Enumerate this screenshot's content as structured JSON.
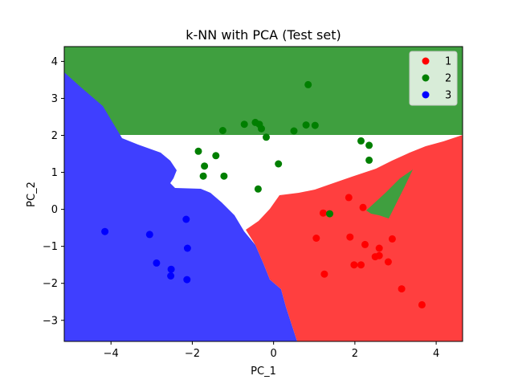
{
  "chart_data": {
    "type": "scatter",
    "title": "k-NN with PCA (Test set)",
    "xlabel": "PC_1",
    "ylabel": "PC_2",
    "xlim": [
      -5.15,
      4.65
    ],
    "ylim": [
      -3.57,
      4.4
    ],
    "xticks": [
      -4,
      -2,
      0,
      2,
      4
    ],
    "yticks": [
      -3,
      -2,
      -1,
      0,
      1,
      2,
      3,
      4
    ],
    "grid": false,
    "legend": {
      "placement": "top-right"
    },
    "regions": [
      {
        "class": "2",
        "color": "#3f9f3f"
      },
      {
        "class": "3",
        "color": "#3f3fff"
      },
      {
        "class": "1",
        "color": "#ff3f3f"
      }
    ],
    "series": [
      {
        "name": "1",
        "color": "#ff0000",
        "points": [
          [
            1.22,
            -0.1
          ],
          [
            1.85,
            0.32
          ],
          [
            2.2,
            0.05
          ],
          [
            1.05,
            -0.78
          ],
          [
            1.88,
            -0.75
          ],
          [
            2.25,
            -0.95
          ],
          [
            2.6,
            -1.05
          ],
          [
            2.92,
            -0.8
          ],
          [
            2.5,
            -1.28
          ],
          [
            2.6,
            -1.25
          ],
          [
            2.82,
            -1.42
          ],
          [
            1.98,
            -1.5
          ],
          [
            2.15,
            -1.5
          ],
          [
            1.25,
            -1.75
          ],
          [
            3.15,
            -2.15
          ],
          [
            3.65,
            -2.58
          ]
        ]
      },
      {
        "name": "2",
        "color": "#007f00",
        "points": [
          [
            0.85,
            3.37
          ],
          [
            -0.72,
            2.3
          ],
          [
            -0.45,
            2.35
          ],
          [
            -0.35,
            2.3
          ],
          [
            -0.3,
            2.18
          ],
          [
            -1.25,
            2.13
          ],
          [
            0.8,
            2.28
          ],
          [
            1.02,
            2.27
          ],
          [
            0.5,
            2.12
          ],
          [
            -0.18,
            1.95
          ],
          [
            2.15,
            1.85
          ],
          [
            2.35,
            1.73
          ],
          [
            -1.85,
            1.57
          ],
          [
            -1.42,
            1.45
          ],
          [
            -1.7,
            1.17
          ],
          [
            2.35,
            1.33
          ],
          [
            0.12,
            1.23
          ],
          [
            -1.73,
            0.9
          ],
          [
            -1.22,
            0.9
          ],
          [
            -0.38,
            0.55
          ],
          [
            1.38,
            -0.12
          ]
        ]
      },
      {
        "name": "3",
        "color": "#0000ff",
        "points": [
          [
            -4.15,
            -0.6
          ],
          [
            -3.05,
            -0.68
          ],
          [
            -2.15,
            -0.27
          ],
          [
            -2.12,
            -1.05
          ],
          [
            -2.88,
            -1.45
          ],
          [
            -2.52,
            -1.62
          ],
          [
            -2.53,
            -1.8
          ],
          [
            -2.13,
            -1.9
          ]
        ]
      }
    ]
  }
}
